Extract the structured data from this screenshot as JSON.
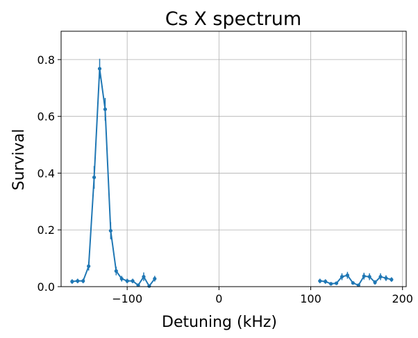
{
  "chart_data": {
    "type": "line",
    "title": "Cs X spectrum",
    "xlabel": "Detuning (kHz)",
    "ylabel": "Survival",
    "xlim": [
      -172,
      204
    ],
    "ylim": [
      0,
      0.9
    ],
    "x_ticks": [
      -100,
      0,
      100,
      200
    ],
    "x_tick_labels": [
      "−100",
      "0",
      "100",
      "200"
    ],
    "y_ticks": [
      0.0,
      0.2,
      0.4,
      0.6,
      0.8
    ],
    "y_tick_labels": [
      "0.0",
      "0.2",
      "0.4",
      "0.6",
      "0.8"
    ],
    "grid": true,
    "line_color": "#1f77b4",
    "series": [
      {
        "x": [
          -160,
          -154,
          -148,
          -142,
          -136,
          -130,
          -124,
          -118,
          -112,
          -106,
          -100,
          -94,
          -88,
          -82,
          -76,
          -70
        ],
        "y": [
          0.018,
          0.02,
          0.02,
          0.072,
          0.385,
          0.768,
          0.625,
          0.197,
          0.055,
          0.028,
          0.02,
          0.02,
          0.005,
          0.035,
          0.002,
          0.028
        ],
        "err": [
          0.008,
          0.008,
          0.008,
          0.015,
          0.04,
          0.035,
          0.04,
          0.03,
          0.015,
          0.01,
          0.008,
          0.008,
          0.005,
          0.015,
          0.003,
          0.01
        ]
      },
      {
        "x": [
          110,
          116,
          122,
          128,
          134,
          140,
          146,
          152,
          158,
          164,
          170,
          176,
          182,
          188
        ],
        "y": [
          0.02,
          0.018,
          0.01,
          0.012,
          0.035,
          0.04,
          0.013,
          0.005,
          0.037,
          0.035,
          0.015,
          0.035,
          0.03,
          0.025
        ],
        "err": [
          0.008,
          0.008,
          0.005,
          0.005,
          0.012,
          0.012,
          0.006,
          0.004,
          0.012,
          0.012,
          0.008,
          0.012,
          0.01,
          0.008
        ]
      }
    ]
  }
}
